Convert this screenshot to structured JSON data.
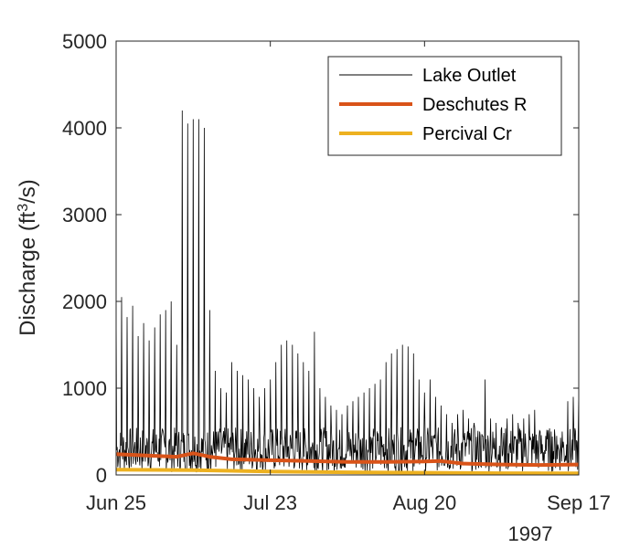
{
  "chart_data": {
    "type": "line",
    "ylabel": "Discharge (ft³/s)",
    "ylabel_base": "Discharge (ft",
    "ylabel_sup": "3",
    "ylabel_tail": "/s)",
    "x_range": [
      "1997-06-25",
      "1997-09-17"
    ],
    "x_ticks": [
      "Jun 25",
      "Jul 23",
      "Aug 20",
      "Sep 17"
    ],
    "x_tick_dates": [
      "1997-06-25",
      "1997-07-23",
      "1997-08-20",
      "1997-09-17"
    ],
    "x_year_label": "1997",
    "y_ticks": [
      "0",
      "1000",
      "2000",
      "3000",
      "4000",
      "5000"
    ],
    "ylim": [
      0,
      5000
    ],
    "grid": false,
    "legend_position": "top-right",
    "series": [
      {
        "name": "Lake Outlet",
        "color": "#000000",
        "peaks": [
          [
            "1997-06-25",
            2000
          ],
          [
            "1997-06-26",
            2050
          ],
          [
            "1997-06-27",
            1820
          ],
          [
            "1997-06-28",
            1950
          ],
          [
            "1997-06-29",
            1600
          ],
          [
            "1997-06-30",
            1750
          ],
          [
            "1997-07-01",
            1550
          ],
          [
            "1997-07-02",
            1700
          ],
          [
            "1997-07-03",
            1850
          ],
          [
            "1997-07-04",
            1900
          ],
          [
            "1997-07-05",
            2000
          ],
          [
            "1997-07-06",
            1500
          ],
          [
            "1997-07-07",
            4200
          ],
          [
            "1997-07-08",
            4050
          ],
          [
            "1997-07-09",
            4100
          ],
          [
            "1997-07-10",
            4100
          ],
          [
            "1997-07-11",
            4000
          ],
          [
            "1997-07-12",
            1900
          ],
          [
            "1997-07-13",
            1200
          ],
          [
            "1997-07-14",
            1000
          ],
          [
            "1997-07-15",
            950
          ],
          [
            "1997-07-16",
            1300
          ],
          [
            "1997-07-17",
            1200
          ],
          [
            "1997-07-18",
            1150
          ],
          [
            "1997-07-19",
            1100
          ],
          [
            "1997-07-20",
            1000
          ],
          [
            "1997-07-21",
            900
          ],
          [
            "1997-07-22",
            1000
          ],
          [
            "1997-07-23",
            1100
          ],
          [
            "1997-07-24",
            1300
          ],
          [
            "1997-07-25",
            1500
          ],
          [
            "1997-07-26",
            1550
          ],
          [
            "1997-07-27",
            1500
          ],
          [
            "1997-07-28",
            1400
          ],
          [
            "1997-07-29",
            1300
          ],
          [
            "1997-07-30",
            1200
          ],
          [
            "1997-07-31",
            1650
          ],
          [
            "1997-08-01",
            1000
          ],
          [
            "1997-08-02",
            900
          ],
          [
            "1997-08-03",
            800
          ],
          [
            "1997-08-04",
            750
          ],
          [
            "1997-08-05",
            700
          ],
          [
            "1997-08-06",
            800
          ],
          [
            "1997-08-07",
            850
          ],
          [
            "1997-08-08",
            900
          ],
          [
            "1997-08-09",
            950
          ],
          [
            "1997-08-10",
            1000
          ],
          [
            "1997-08-11",
            1050
          ],
          [
            "1997-08-12",
            1100
          ],
          [
            "1997-08-13",
            1300
          ],
          [
            "1997-08-14",
            1400
          ],
          [
            "1997-08-15",
            1450
          ],
          [
            "1997-08-16",
            1500
          ],
          [
            "1997-08-17",
            1480
          ],
          [
            "1997-08-18",
            1400
          ],
          [
            "1997-08-19",
            1100
          ],
          [
            "1997-08-20",
            950
          ],
          [
            "1997-08-21",
            1100
          ],
          [
            "1997-08-22",
            900
          ],
          [
            "1997-08-23",
            800
          ],
          [
            "1997-08-24",
            700
          ],
          [
            "1997-08-25",
            600
          ],
          [
            "1997-08-26",
            700
          ],
          [
            "1997-08-27",
            750
          ],
          [
            "1997-08-28",
            650
          ],
          [
            "1997-08-29",
            600
          ],
          [
            "1997-08-30",
            500
          ],
          [
            "1997-08-31",
            1100
          ],
          [
            "1997-09-01",
            650
          ],
          [
            "1997-09-02",
            600
          ],
          [
            "1997-09-03",
            550
          ],
          [
            "1997-09-04",
            650
          ],
          [
            "1997-09-05",
            700
          ],
          [
            "1997-09-06",
            600
          ],
          [
            "1997-09-07",
            650
          ],
          [
            "1997-09-08",
            700
          ],
          [
            "1997-09-09",
            750
          ],
          [
            "1997-09-10",
            500
          ],
          [
            "1997-09-11",
            450
          ],
          [
            "1997-09-12",
            500
          ],
          [
            "1997-09-13",
            450
          ],
          [
            "1997-09-14",
            500
          ],
          [
            "1997-09-15",
            850
          ],
          [
            "1997-09-16",
            900
          ],
          [
            "1997-09-17",
            950
          ]
        ]
      },
      {
        "name": "Deschutes R",
        "color": "#D95319",
        "points": [
          [
            "1997-06-25",
            240
          ],
          [
            "1997-07-02",
            220
          ],
          [
            "1997-07-06",
            210
          ],
          [
            "1997-07-09",
            250
          ],
          [
            "1997-07-12",
            210
          ],
          [
            "1997-07-16",
            180
          ],
          [
            "1997-07-23",
            170
          ],
          [
            "1997-07-30",
            160
          ],
          [
            "1997-08-06",
            150
          ],
          [
            "1997-08-13",
            150
          ],
          [
            "1997-08-20",
            155
          ],
          [
            "1997-08-23",
            160
          ],
          [
            "1997-08-27",
            130
          ],
          [
            "1997-09-03",
            120
          ],
          [
            "1997-09-10",
            115
          ],
          [
            "1997-09-17",
            120
          ]
        ]
      },
      {
        "name": "Percival Cr",
        "color": "#EDB120",
        "points": [
          [
            "1997-06-25",
            60
          ],
          [
            "1997-07-09",
            55
          ],
          [
            "1997-07-23",
            40
          ],
          [
            "1997-08-06",
            30
          ],
          [
            "1997-08-20",
            25
          ],
          [
            "1997-09-03",
            20
          ],
          [
            "1997-09-17",
            18
          ]
        ]
      }
    ]
  }
}
